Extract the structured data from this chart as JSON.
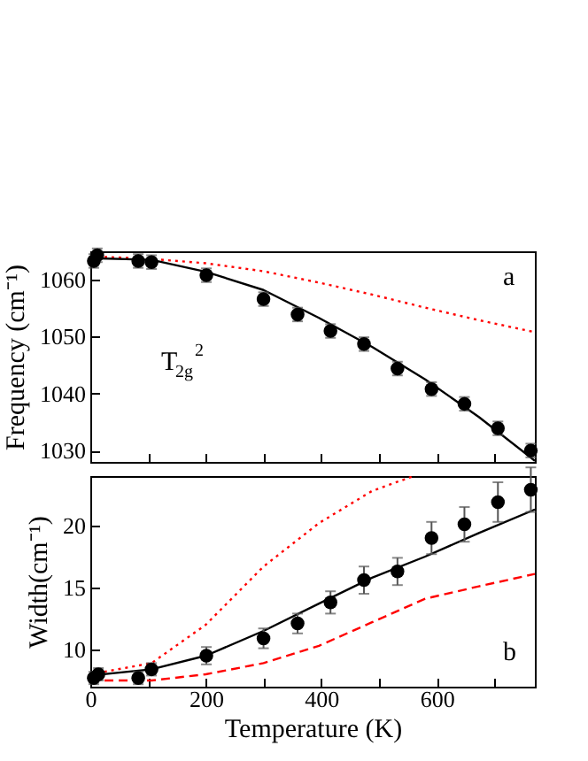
{
  "chart_data": [
    {
      "type": "scatter",
      "ylabel": "Frequency (cm⁻¹)",
      "annotations": [
        "a",
        "T$_{2g}$$^{2}$"
      ],
      "xlim": [
        0,
        770
      ],
      "xticks": [
        0,
        {
          "value": 100,
          "label": null
        },
        200,
        {
          "value": 300,
          "label": null
        },
        400,
        {
          "value": 500,
          "label": null
        },
        600,
        {
          "value": 700,
          "label": null
        }
      ],
      "ylim": [
        1028,
        1065
      ],
      "yticks": [
        1030,
        1040,
        1050,
        1060
      ],
      "tick_labels": "y",
      "grid": false,
      "series": [
        {
          "type": "line",
          "color": "#ff0000",
          "line_style": "dotted",
          "x": [
            0,
            100,
            200,
            300,
            396,
            488,
            580,
            673,
            770
          ],
          "values": [
            1064.1,
            1063.7,
            1062.9,
            1061.5,
            1059.5,
            1057.4,
            1055.1,
            1052.9,
            1050.8
          ]
        },
        {
          "type": "line",
          "color": "#000000",
          "line_style": "solid",
          "x": [
            0,
            106,
            200,
            300,
            396,
            488,
            580,
            673,
            770
          ],
          "values": [
            1063.8,
            1063.5,
            1061.4,
            1058.2,
            1053.3,
            1048.2,
            1042.5,
            1035.9,
            1028.2
          ]
        },
        {
          "type": "scatter",
          "color": "#000000",
          "marker": "circle",
          "x": [
            6,
            12,
            83,
            106,
            201,
            300,
            359,
            416,
            474,
            532,
            591,
            648,
            706,
            763
          ],
          "values": [
            1063.3,
            1064.3,
            1063.3,
            1063.1,
            1060.8,
            1056.6,
            1053.9,
            1051.0,
            1048.7,
            1044.4,
            1040.8,
            1038.2,
            1033.9,
            1030.0
          ],
          "errors": [
            1.2,
            1.2,
            1.2,
            1.2,
            1.2,
            1.2,
            1.2,
            1.2,
            1.2,
            1.2,
            1.2,
            1.2,
            1.2,
            1.2
          ]
        }
      ]
    },
    {
      "type": "scatter",
      "xlabel": "Temperature (K)",
      "ylabel": "Width(cm⁻¹)",
      "annotations": [
        "b"
      ],
      "xlim": [
        0,
        770
      ],
      "xticks": [
        0,
        {
          "value": 100,
          "label": null
        },
        200,
        {
          "value": 300,
          "label": null
        },
        400,
        {
          "value": 500,
          "label": null
        },
        600,
        {
          "value": 700,
          "label": null
        }
      ],
      "ylim": [
        7,
        24
      ],
      "yticks": [
        10,
        15,
        20
      ],
      "grid": false,
      "series": [
        {
          "type": "line",
          "color": "#ff0000",
          "line_style": "dotted",
          "x": [
            0,
            106,
            200,
            300,
            396,
            488,
            560
          ],
          "values": [
            8.0,
            8.9,
            12.0,
            16.7,
            20.2,
            22.8,
            24.0
          ]
        },
        {
          "type": "line",
          "color": "#ff0000",
          "line_style": "dashed",
          "x": [
            0,
            106,
            200,
            300,
            396,
            488,
            580,
            673,
            770
          ],
          "values": [
            7.5,
            7.5,
            8.0,
            8.9,
            10.3,
            12.2,
            14.1,
            15.1,
            16.1
          ]
        },
        {
          "type": "line",
          "color": "#000000",
          "line_style": "solid",
          "x": [
            0,
            106,
            200,
            300,
            396,
            488,
            580,
            673,
            770
          ],
          "values": [
            7.9,
            8.4,
            9.5,
            11.5,
            13.7,
            15.8,
            17.5,
            19.4,
            21.3
          ]
        },
        {
          "type": "scatter",
          "color": "#000000",
          "marker": "circle",
          "x": [
            6,
            14,
            83,
            106,
            201,
            300,
            359,
            416,
            474,
            532,
            591,
            648,
            706,
            763
          ],
          "values": [
            7.7,
            8.0,
            7.7,
            8.4,
            9.5,
            10.9,
            12.1,
            13.8,
            15.6,
            16.3,
            19.0,
            20.1,
            21.9,
            22.9
          ],
          "errors": [
            0.5,
            0.5,
            0.5,
            0.5,
            0.7,
            0.8,
            0.8,
            0.9,
            1.1,
            1.1,
            1.3,
            1.4,
            1.6,
            1.8
          ]
        }
      ]
    }
  ]
}
